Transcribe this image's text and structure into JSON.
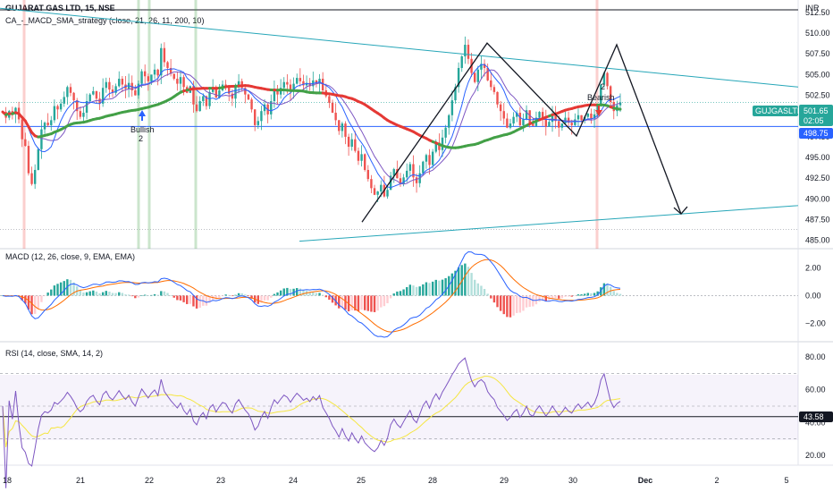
{
  "header": {
    "symbol_line": "GUJARAT GAS LTD, 15, NSE",
    "strategy_line": "CA_-_MACD_SMA_strategy (close, 21, 26, 11, 200, 10)",
    "currency": "INR"
  },
  "price_badges": {
    "ticker": "GUJGASLTD",
    "last_price": "501.65",
    "countdown": "02:05",
    "support_level": "498.75",
    "rsi_value": "43.58"
  },
  "annotations": {
    "bullish_text": "Bullish",
    "bullish_num": "2",
    "bearish_text": "Bearish",
    "bearish_num": "2"
  },
  "colors": {
    "up": "#26a69a",
    "down": "#ef5350",
    "sma_slow_green": "#43a047",
    "sma_slow_red": "#e53935",
    "blue_line": "#2962ff",
    "purple_line": "#7e57c2",
    "trendline": "#26a6b8",
    "macd_line": "#2962ff",
    "signal_line": "#ff6d00",
    "rsi_line": "#7e57c2",
    "rsi_ma": "#f5e642",
    "badge_green": "#26a69a",
    "badge_blue": "#2962ff"
  },
  "chart_data": [
    {
      "type": "line",
      "title": "GUJARAT GAS LTD, 15, NSE",
      "subtitle": "CA_-_MACD_SMA_strategy (close, 21, 26, 11, 200, 10)",
      "x_ticks": [
        "18",
        "21",
        "22",
        "23",
        "24",
        "25",
        "28",
        "29",
        "30",
        "Dec",
        "2",
        "5"
      ],
      "y_ticks": [
        "485.00",
        "487.50",
        "490.00",
        "492.50",
        "495.00",
        "497.50",
        "500.00",
        "502.50",
        "505.00",
        "507.50",
        "510.00",
        "512.50"
      ],
      "ylim": [
        484,
        514
      ],
      "series": [
        {
          "values": [
            500.5,
            499.8,
            500.6,
            500.2,
            501.0,
            499.6,
            497.2,
            496.4,
            493.1,
            491.8,
            493.5,
            496.0,
            498.4,
            499.2,
            498.9,
            499.5,
            501.2,
            500.8,
            501.5,
            502.3,
            503.5,
            502.8,
            501.9,
            500.6,
            499.9,
            500.4,
            501.8,
            502.6,
            503.0,
            502.1,
            501.5,
            503.4,
            504.1,
            503.2,
            502.8,
            503.6,
            504.5,
            503.8,
            503.3,
            504.0,
            503.1,
            502.5,
            503.9,
            505.4,
            504.8,
            504.2,
            505.0,
            505.6,
            504.9,
            508.2,
            506.5,
            505.8,
            505.1,
            504.5,
            503.9,
            504.7,
            503.5,
            502.8,
            503.6,
            501.4,
            500.6,
            501.8,
            502.4,
            501.2,
            502.9,
            503.5,
            502.2,
            503.1,
            503.8,
            503.6,
            502.7,
            502.1,
            503.5,
            504.2,
            503.4,
            502.6,
            502.0,
            500.8,
            498.9,
            499.4,
            500.6,
            501.4,
            500.2,
            501.8,
            503.2,
            502.6,
            503.4,
            504.1,
            503.8,
            503.1,
            503.9,
            504.6,
            504.2,
            503.7,
            504.0,
            503.6,
            504.3,
            503.9,
            504.5,
            503.1,
            502.4,
            501.6,
            500.4,
            499.5,
            498.2,
            499.1,
            497.5,
            496.3,
            497.2,
            495.8,
            494.6,
            495.4,
            493.5,
            492.4,
            491.3,
            490.5,
            490.9,
            491.7,
            490.3,
            491.1,
            492.8,
            493.6,
            492.5,
            491.8,
            492.6,
            493.4,
            494.2,
            492.6,
            491.9,
            493.1,
            494.5,
            495.3,
            494.1,
            495.7,
            496.8,
            495.9,
            497.4,
            498.6,
            500.1,
            501.9,
            503.5,
            505.8,
            507.2,
            508.6,
            506.9,
            505.2,
            504.1,
            505.6,
            506.3,
            505.8,
            504.3,
            503.5,
            502.9,
            501.4,
            500.6,
            499.7,
            498.6,
            499.1,
            499.9,
            500.4,
            498.9,
            499.6,
            500.7,
            499.2,
            498.8,
            499.8,
            500.5,
            499.6,
            498.7,
            499.3,
            500.2,
            499.4,
            498.6,
            499.1,
            499.8,
            499.2,
            498.9,
            499.6,
            500.1,
            499.5,
            499.9,
            500.3,
            499.7,
            500.2,
            501.3,
            503.8,
            505.2,
            503.6,
            501.7,
            500.6,
            501.3,
            501.65
          ]
        }
      ]
    },
    {
      "type": "bar",
      "title": "MACD (12, 26, close, 9, EMA, EMA)",
      "y_ticks": [
        "2.00",
        "0.00",
        "-2.00"
      ],
      "ylim": [
        -3.2,
        3.0
      ]
    },
    {
      "type": "line",
      "title": "RSI (14, close, SMA, 14, 2)",
      "y_ticks": [
        "80.00",
        "60.00",
        "40.00",
        "20.00"
      ],
      "ylim": [
        14,
        86
      ]
    }
  ]
}
